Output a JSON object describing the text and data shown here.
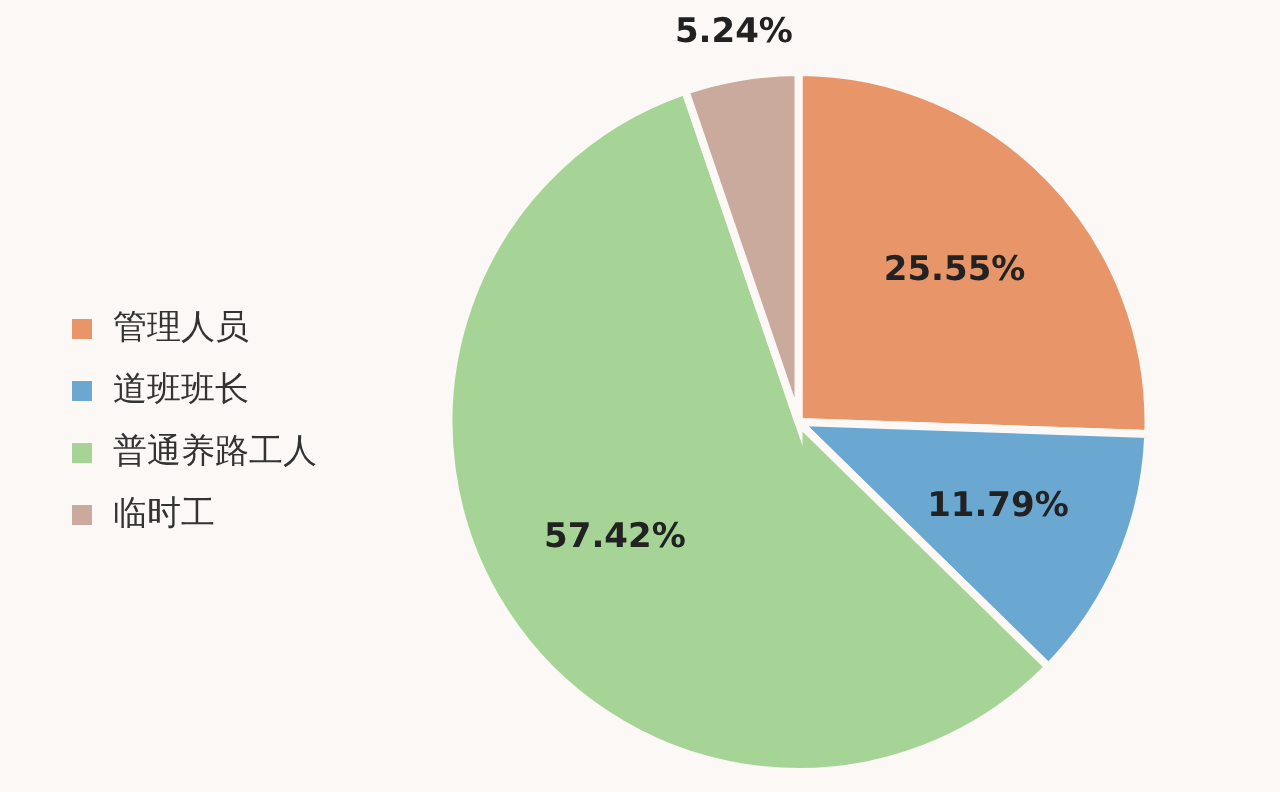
{
  "chart_data": {
    "type": "pie",
    "categories": [
      "管理人员",
      "道班班长",
      "普通养路工人",
      "临时工"
    ],
    "values": [
      25.55,
      11.79,
      57.42,
      5.24
    ],
    "colors": [
      "#e8956a",
      "#6aa8d2",
      "#a6d496",
      "#c9aa9c"
    ],
    "value_labels": [
      "25.55%",
      "11.79%",
      "57.42%",
      "5.24%"
    ],
    "legend": "left"
  }
}
